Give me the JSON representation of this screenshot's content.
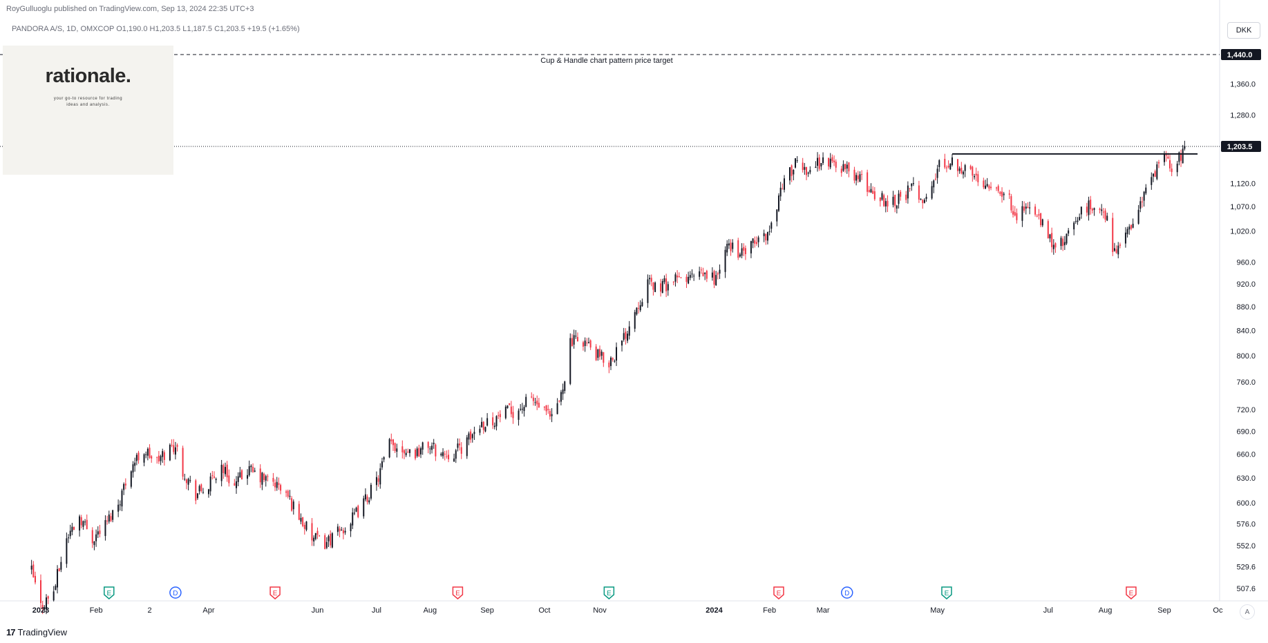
{
  "header": {
    "published": "RoyGulluoglu published on TradingView.com, Sep 13, 2024 22:35 UTC+3",
    "ohlc": "PANDORA A/S, 1D, OMXCOP  O1,190.0  H1,203.5  L1,187.5  C1,203.5  +19.5 (+1.65%)"
  },
  "logo": {
    "wordmark": "rationale.",
    "tagline_line1": "your go-to resource for trading",
    "tagline_line2": "ideas and analysis."
  },
  "currency_button": "DKK",
  "auto_scale_button": "A",
  "footer_brand": {
    "mark": "17",
    "name": "TradingView"
  },
  "colors": {
    "up": "#131722",
    "down": "#f23645",
    "target": "#131722",
    "last_price_bg": "#131722",
    "earnings": "#089981",
    "dividend": "#2962ff",
    "earnings_neg": "#f23645"
  },
  "chart_data": {
    "type": "candlestick",
    "symbol": "PANDORA A/S",
    "interval": "1D",
    "exchange": "OMXCOP",
    "y_scale": "log",
    "ylim": [
      490,
      1480
    ],
    "y_ticks": [
      "1,360.0",
      "1,280.0",
      "1,120.0",
      "1,070.0",
      "1,020.0",
      "960.0",
      "920.0",
      "880.0",
      "840.0",
      "800.0",
      "760.0",
      "720.0",
      "690.0",
      "660.0",
      "630.0",
      "600.0",
      "576.0",
      "552.0",
      "529.6",
      "507.6"
    ],
    "y_tick_values": [
      1360,
      1280,
      1120,
      1070,
      1020,
      960,
      920,
      880,
      840,
      800,
      760,
      720,
      690,
      660,
      630,
      600,
      576,
      552,
      529.6,
      507.6
    ],
    "x_labels": [
      {
        "label": "2023",
        "date": "2023-01-02",
        "bold": true
      },
      {
        "label": "Feb",
        "date": "2023-02-01"
      },
      {
        "label": "2",
        "date": "2023-03-02"
      },
      {
        "label": "Apr",
        "date": "2023-04-03"
      },
      {
        "label": "Jun",
        "date": "2023-06-01"
      },
      {
        "label": "Jul",
        "date": "2023-07-03"
      },
      {
        "label": "Aug",
        "date": "2023-08-01"
      },
      {
        "label": "Sep",
        "date": "2023-09-01"
      },
      {
        "label": "Oct",
        "date": "2023-10-02"
      },
      {
        "label": "Nov",
        "date": "2023-11-01"
      },
      {
        "label": "2024",
        "date": "2024-01-02",
        "bold": true
      },
      {
        "label": "Feb",
        "date": "2024-02-01"
      },
      {
        "label": "Mar",
        "date": "2024-03-01"
      },
      {
        "label": "May",
        "date": "2024-05-02"
      },
      {
        "label": "Jul",
        "date": "2024-07-01"
      },
      {
        "label": "Aug",
        "date": "2024-08-01"
      },
      {
        "label": "Sep",
        "date": "2024-09-02"
      },
      {
        "label": "Oc",
        "date": "2024-10-01"
      }
    ],
    "price_path": [
      [
        "2022-12-28",
        525
      ],
      [
        "2023-01-02",
        490
      ],
      [
        "2023-01-09",
        505
      ],
      [
        "2023-01-16",
        560
      ],
      [
        "2023-01-23",
        585
      ],
      [
        "2023-01-30",
        560
      ],
      [
        "2023-02-06",
        575
      ],
      [
        "2023-02-13",
        600
      ],
      [
        "2023-02-20",
        645
      ],
      [
        "2023-02-27",
        665
      ],
      [
        "2023-03-06",
        650
      ],
      [
        "2023-03-13",
        668
      ],
      [
        "2023-03-16",
        672
      ],
      [
        "2023-03-20",
        640
      ],
      [
        "2023-03-27",
        610
      ],
      [
        "2023-04-03",
        620
      ],
      [
        "2023-04-10",
        645
      ],
      [
        "2023-04-17",
        620
      ],
      [
        "2023-04-24",
        640
      ],
      [
        "2023-05-01",
        630
      ],
      [
        "2023-05-08",
        625
      ],
      [
        "2023-05-15",
        610
      ],
      [
        "2023-05-22",
        585
      ],
      [
        "2023-05-29",
        560
      ],
      [
        "2023-06-05",
        555
      ],
      [
        "2023-06-12",
        565
      ],
      [
        "2023-06-19",
        578
      ],
      [
        "2023-06-26",
        600
      ],
      [
        "2023-07-03",
        625
      ],
      [
        "2023-07-10",
        672
      ],
      [
        "2023-07-17",
        668
      ],
      [
        "2023-07-24",
        662
      ],
      [
        "2023-07-31",
        672
      ],
      [
        "2023-08-07",
        660
      ],
      [
        "2023-08-14",
        662
      ],
      [
        "2023-08-21",
        675
      ],
      [
        "2023-08-28",
        700
      ],
      [
        "2023-09-04",
        705
      ],
      [
        "2023-09-11",
        715
      ],
      [
        "2023-09-18",
        720
      ],
      [
        "2023-09-25",
        735
      ],
      [
        "2023-10-02",
        715
      ],
      [
        "2023-10-06",
        705
      ],
      [
        "2023-10-11",
        740
      ],
      [
        "2023-10-16",
        820
      ],
      [
        "2023-10-23",
        825
      ],
      [
        "2023-10-30",
        800
      ],
      [
        "2023-11-06",
        790
      ],
      [
        "2023-11-13",
        820
      ],
      [
        "2023-11-20",
        875
      ],
      [
        "2023-11-27",
        920
      ],
      [
        "2023-12-04",
        915
      ],
      [
        "2023-12-11",
        925
      ],
      [
        "2023-12-18",
        930
      ],
      [
        "2023-12-27",
        935
      ],
      [
        "2024-01-03",
        930
      ],
      [
        "2024-01-10",
        995
      ],
      [
        "2024-01-17",
        975
      ],
      [
        "2024-01-24",
        995
      ],
      [
        "2024-02-01",
        1020
      ],
      [
        "2024-02-08",
        1120
      ],
      [
        "2024-02-15",
        1160
      ],
      [
        "2024-02-22",
        1150
      ],
      [
        "2024-02-29",
        1170
      ],
      [
        "2024-03-07",
        1165
      ],
      [
        "2024-03-14",
        1150
      ],
      [
        "2024-03-21",
        1130
      ],
      [
        "2024-03-28",
        1100
      ],
      [
        "2024-04-05",
        1080
      ],
      [
        "2024-04-12",
        1090
      ],
      [
        "2024-04-19",
        1110
      ],
      [
        "2024-04-26",
        1080
      ],
      [
        "2024-05-03",
        1160
      ],
      [
        "2024-05-10",
        1170
      ],
      [
        "2024-05-17",
        1150
      ],
      [
        "2024-05-24",
        1130
      ],
      [
        "2024-05-31",
        1120
      ],
      [
        "2024-06-07",
        1100
      ],
      [
        "2024-06-14",
        1055
      ],
      [
        "2024-06-21",
        1070
      ],
      [
        "2024-06-28",
        1030
      ],
      [
        "2024-07-05",
        985
      ],
      [
        "2024-07-12",
        1010
      ],
      [
        "2024-07-19",
        1060
      ],
      [
        "2024-07-26",
        1075
      ],
      [
        "2024-08-02",
        1040
      ],
      [
        "2024-08-05",
        985
      ],
      [
        "2024-08-12",
        1005
      ],
      [
        "2024-08-19",
        1070
      ],
      [
        "2024-08-26",
        1130
      ],
      [
        "2024-09-02",
        1175
      ],
      [
        "2024-09-06",
        1160
      ],
      [
        "2024-09-12",
        1184
      ],
      [
        "2024-09-13",
        1203.5
      ]
    ],
    "last_price": {
      "label": "1,203.5",
      "value": 1203.5
    },
    "target": {
      "label": "1,440.0",
      "value": 1440,
      "text": "Cup & Handle chart pattern price target",
      "style": "dashed"
    },
    "resistance_line": {
      "value": 1186,
      "from": "2024-05-10",
      "to": "2024-09-20"
    },
    "events": [
      {
        "type": "E",
        "date": "2023-02-08",
        "kind": "earnings"
      },
      {
        "type": "D",
        "date": "2023-03-16",
        "kind": "dividend"
      },
      {
        "type": "E",
        "date": "2023-05-09",
        "kind": "earnings_neg"
      },
      {
        "type": "E",
        "date": "2023-08-16",
        "kind": "earnings_neg"
      },
      {
        "type": "E",
        "date": "2023-11-06",
        "kind": "earnings"
      },
      {
        "type": "E",
        "date": "2024-02-06",
        "kind": "earnings_neg"
      },
      {
        "type": "D",
        "date": "2024-03-14",
        "kind": "dividend"
      },
      {
        "type": "E",
        "date": "2024-05-07",
        "kind": "earnings"
      },
      {
        "type": "E",
        "date": "2024-08-15",
        "kind": "earnings_neg"
      }
    ]
  }
}
